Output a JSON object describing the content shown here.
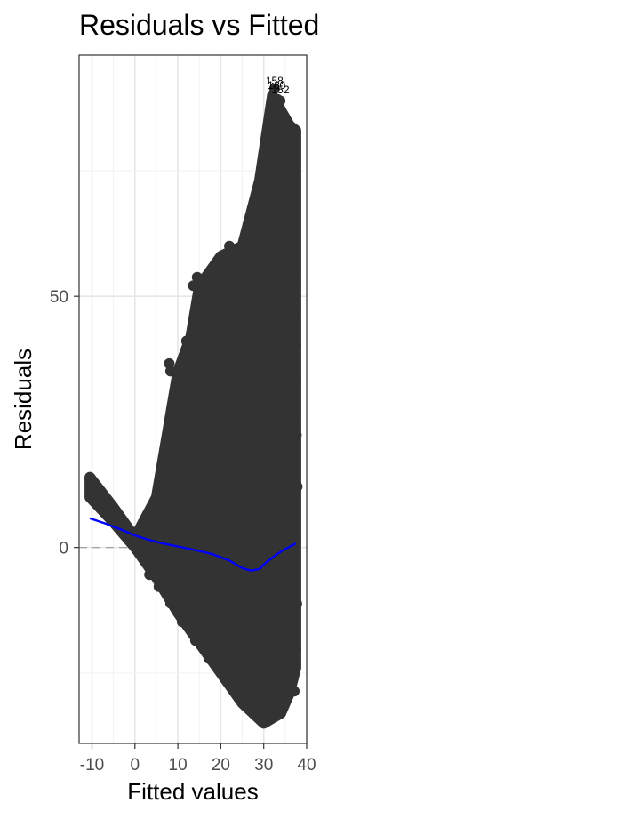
{
  "chart_data": {
    "type": "scatter",
    "title": "Residuals vs Fitted",
    "xlabel": "Fitted values",
    "ylabel": "Residuals",
    "xlim": [
      -13,
      40
    ],
    "ylim": [
      -39,
      98
    ],
    "x_ticks": [
      -10,
      0,
      10,
      20,
      30,
      40
    ],
    "x_tick_labels": [
      "-10",
      "0",
      "10",
      "20",
      "30",
      "40"
    ],
    "y_ticks": [
      0,
      50
    ],
    "y_tick_labels": [
      "0",
      "50"
    ],
    "grid": true,
    "point_color": "#333333",
    "smooth_color": "#0000ff",
    "reference_line": {
      "y": 0,
      "style": "dashed",
      "color": "#999999"
    },
    "point_region": {
      "upper_envelope": [
        [
          -10.5,
          14
        ],
        [
          -5,
          8
        ],
        [
          0,
          2
        ],
        [
          5,
          10
        ],
        [
          7,
          20
        ],
        [
          10,
          35
        ],
        [
          13,
          42
        ],
        [
          15,
          52
        ],
        [
          20,
          58
        ],
        [
          25,
          60
        ],
        [
          29,
          73
        ],
        [
          32,
          90
        ],
        [
          36,
          84
        ],
        [
          37.5,
          83
        ]
      ],
      "lower_envelope": [
        [
          -10.5,
          10
        ],
        [
          -5,
          5
        ],
        [
          0,
          0
        ],
        [
          5,
          -6
        ],
        [
          10,
          -13
        ],
        [
          15,
          -19
        ],
        [
          20,
          -25
        ],
        [
          25,
          -31
        ],
        [
          30,
          -35
        ],
        [
          34,
          -33
        ],
        [
          36,
          -29
        ],
        [
          37.5,
          -24
        ]
      ]
    },
    "scatter_points": [
      {
        "x": -10.5,
        "y": 13.8
      },
      {
        "x": -10.3,
        "y": 12.6
      },
      {
        "x": -10.1,
        "y": 11.4
      },
      {
        "x": -9.6,
        "y": 10.3
      },
      {
        "x": -7.4,
        "y": 8.4
      },
      {
        "x": -6.6,
        "y": 8.7
      },
      {
        "x": -6.1,
        "y": 6.8
      },
      {
        "x": -5.2,
        "y": 5.6
      },
      {
        "x": -4.4,
        "y": 4.7
      },
      {
        "x": -3.6,
        "y": 4.0
      },
      {
        "x": -2.8,
        "y": 3.2
      },
      {
        "x": -1.6,
        "y": 2.6
      },
      {
        "x": 0.4,
        "y": 1.5
      },
      {
        "x": 2.2,
        "y": 0.9
      },
      {
        "x": 5.8,
        "y": 10.1
      },
      {
        "x": 6.6,
        "y": 9.1
      },
      {
        "x": 7.5,
        "y": 9.6
      },
      {
        "x": 8.0,
        "y": 36.6
      },
      {
        "x": 8.3,
        "y": 35.1
      },
      {
        "x": 13.6,
        "y": 52.1
      },
      {
        "x": 14.5,
        "y": 53.8
      },
      {
        "x": 22.0,
        "y": 60.0
      },
      {
        "x": 28.0,
        "y": 60.4
      },
      {
        "x": 29.6,
        "y": 73.6
      },
      {
        "x": 31.3,
        "y": 76.0
      },
      {
        "x": 31.0,
        "y": 79.6
      },
      {
        "x": 32.5,
        "y": 91.3
      },
      {
        "x": 33.2,
        "y": 89.2
      },
      {
        "x": 33.8,
        "y": 88.9
      },
      {
        "x": 35.7,
        "y": 83.9
      },
      {
        "x": 36.9,
        "y": 82.8
      },
      {
        "x": 36.2,
        "y": 79.1
      },
      {
        "x": 35.8,
        "y": 70.9
      },
      {
        "x": 34.7,
        "y": 66.3
      },
      {
        "x": 36.3,
        "y": 61.2
      },
      {
        "x": 37.2,
        "y": 55.5
      },
      {
        "x": 36.8,
        "y": 46.0
      },
      {
        "x": 37.5,
        "y": 40.1
      },
      {
        "x": 37.5,
        "y": 33.1
      },
      {
        "x": 37.6,
        "y": 22.4
      },
      {
        "x": 37.8,
        "y": 12.1
      },
      {
        "x": 37.5,
        "y": 1.1
      },
      {
        "x": 37.7,
        "y": -11.2
      },
      {
        "x": 37.5,
        "y": -20.3
      },
      {
        "x": 37.1,
        "y": -28.6
      },
      {
        "x": 35.5,
        "y": -27.4
      },
      {
        "x": 33.9,
        "y": -33.0
      },
      {
        "x": 32.7,
        "y": -32.1
      },
      {
        "x": 30.5,
        "y": -33.0
      },
      {
        "x": 27.2,
        "y": -30.0
      },
      {
        "x": 24.0,
        "y": -28.5
      },
      {
        "x": 20.5,
        "y": -25.1
      },
      {
        "x": 17.2,
        "y": -22.1
      },
      {
        "x": 14.1,
        "y": -18.5
      },
      {
        "x": 11.0,
        "y": -14.8
      },
      {
        "x": 8.3,
        "y": -11.1
      },
      {
        "x": 5.6,
        "y": -7.8
      },
      {
        "x": 3.4,
        "y": -5.4
      },
      {
        "x": 17.1,
        "y": 48.2
      },
      {
        "x": 19.3,
        "y": 46.5
      },
      {
        "x": 18.8,
        "y": 47.6
      },
      {
        "x": 12.0,
        "y": 41.1
      },
      {
        "x": 11.0,
        "y": 36.3
      },
      {
        "x": 9.5,
        "y": 20.6
      },
      {
        "x": 8.6,
        "y": 16.9
      }
    ],
    "series": [
      {
        "type": "line",
        "x": [
          -10.5,
          -7,
          -3,
          0,
          3,
          6,
          10,
          14,
          18,
          22,
          25,
          27,
          29,
          30,
          31,
          33,
          35,
          37.5
        ],
        "values": [
          5.8,
          4.8,
          3.5,
          2.4,
          1.6,
          0.9,
          0.2,
          -0.5,
          -1.3,
          -2.6,
          -4.1,
          -4.6,
          -4.3,
          -3.4,
          -2.7,
          -1.4,
          -0.3,
          0.8
        ]
      }
    ],
    "annotations": [
      {
        "text": "158",
        "x": 32.5,
        "y": 92.2
      },
      {
        "text": "160",
        "x": 33.0,
        "y": 91.3
      },
      {
        "text": "152",
        "x": 33.9,
        "y": 90.4
      }
    ]
  }
}
